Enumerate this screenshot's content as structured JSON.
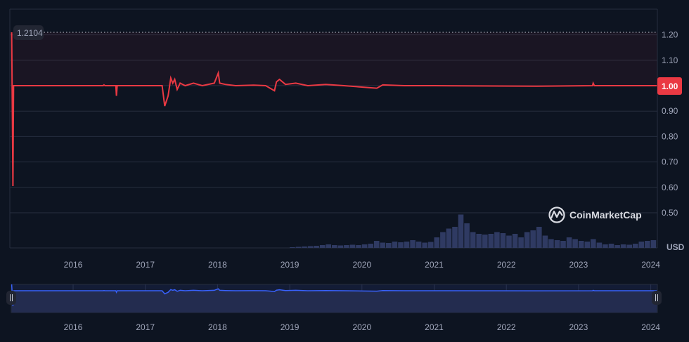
{
  "chart_data": {
    "type": "line",
    "title": "",
    "xlabel": "",
    "ylabel": "",
    "y_unit_label": "USD",
    "watermark": "CoinMarketCap",
    "max_label": "1.2104",
    "current_price_label": "1.00",
    "ylim": [
      0.45,
      1.25
    ],
    "y_ticks": [
      "1.20",
      "1.10",
      "0.90",
      "0.80",
      "0.70",
      "0.60",
      "0.50"
    ],
    "x_ticks": [
      "2016",
      "2017",
      "2018",
      "2019",
      "2020",
      "2021",
      "2022",
      "2023",
      "2024"
    ],
    "grid": true,
    "colors": {
      "background": "#0d1421",
      "price_line": "#ea3943",
      "volume": "#2f3a62",
      "navigator_line": "#3861fb",
      "navigator_fill": "#232c4f",
      "grid": "#262e3f"
    },
    "series": [
      {
        "type": "line",
        "points": [
          [
            "2015-02-25",
            1.21
          ],
          [
            "2015-03-01",
            0.605
          ],
          [
            "2015-03-04",
            1.0
          ],
          [
            "2016-06-01",
            1.0
          ],
          [
            "2016-06-05",
            1.003
          ],
          [
            "2016-06-10",
            1.0
          ],
          [
            "2016-08-04",
            1.0
          ],
          [
            "2016-08-07",
            0.96
          ],
          [
            "2016-08-11",
            1.0
          ],
          [
            "2017-03-25",
            1.0
          ],
          [
            "2017-04-08",
            0.92
          ],
          [
            "2017-04-25",
            0.96
          ],
          [
            "2017-05-08",
            1.03
          ],
          [
            "2017-05-18",
            1.01
          ],
          [
            "2017-05-28",
            1.025
          ],
          [
            "2017-06-10",
            0.985
          ],
          [
            "2017-06-25",
            1.01
          ],
          [
            "2017-07-20",
            1.0
          ],
          [
            "2017-09-01",
            1.01
          ],
          [
            "2017-10-15",
            1.0
          ],
          [
            "2017-12-15",
            1.01
          ],
          [
            "2018-01-05",
            1.05
          ],
          [
            "2018-01-12",
            1.01
          ],
          [
            "2018-02-10",
            1.005
          ],
          [
            "2018-04-01",
            1.0
          ],
          [
            "2018-07-01",
            1.002
          ],
          [
            "2018-09-01",
            1.0
          ],
          [
            "2018-10-15",
            0.98
          ],
          [
            "2018-10-25",
            1.015
          ],
          [
            "2018-11-10",
            1.025
          ],
          [
            "2018-12-10",
            1.005
          ],
          [
            "2019-02-01",
            1.01
          ],
          [
            "2019-04-01",
            1.0
          ],
          [
            "2019-07-01",
            1.005
          ],
          [
            "2019-10-01",
            1.0
          ],
          [
            "2020-03-15",
            0.99
          ],
          [
            "2020-04-15",
            1.003
          ],
          [
            "2020-08-01",
            1.0
          ],
          [
            "2021-01-01",
            1.0
          ],
          [
            "2022-06-01",
            0.998
          ],
          [
            "2023-03-11",
            1.0
          ],
          [
            "2023-03-14",
            1.01
          ],
          [
            "2023-03-20",
            1.0
          ],
          [
            "2024-02-01",
            1.0
          ]
        ]
      },
      {
        "type": "bar",
        "start_month": "2019-01",
        "relative_volume": [
          2,
          3,
          4,
          5,
          6,
          8,
          10,
          8,
          7,
          8,
          9,
          8,
          10,
          12,
          20,
          15,
          14,
          18,
          16,
          18,
          22,
          18,
          15,
          17,
          30,
          45,
          55,
          60,
          95,
          70,
          45,
          40,
          38,
          40,
          45,
          42,
          35,
          40,
          30,
          45,
          50,
          60,
          35,
          25,
          22,
          20,
          30,
          25,
          20,
          18,
          25,
          15,
          10,
          12,
          8,
          10,
          9,
          12,
          18,
          20,
          22
        ]
      }
    ]
  }
}
